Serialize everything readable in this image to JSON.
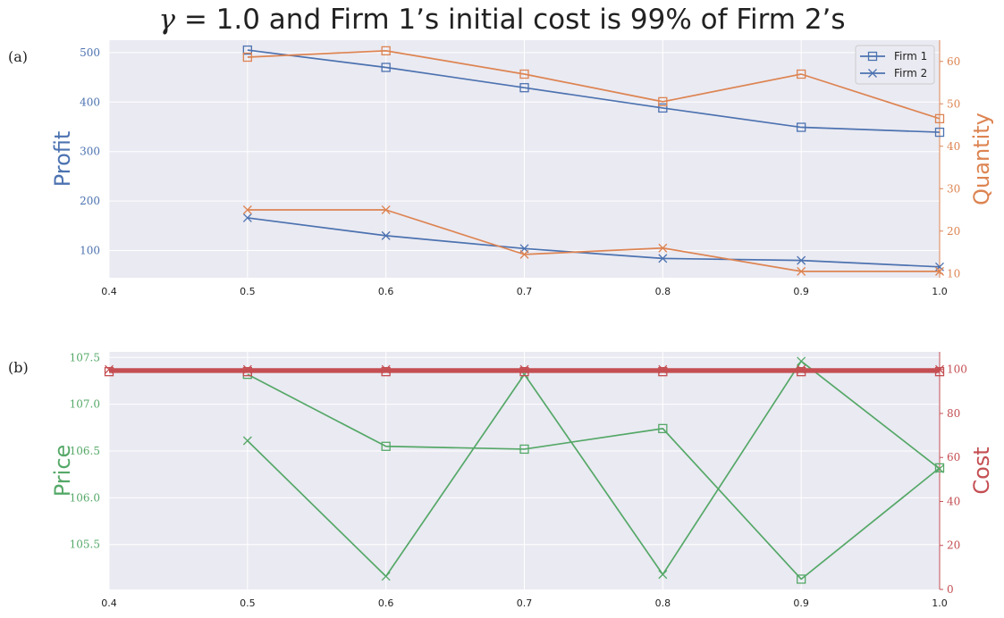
{
  "title_prefix": "γ",
  "title_rest": " = 1.0 and Firm 1’s initial cost is 99% of Firm 2’s",
  "panel_labels": {
    "a": "(a)",
    "b": "(b)"
  },
  "colors": {
    "blue": "#4c72b0",
    "orange": "#dd8452",
    "green": "#55a868",
    "red": "#c44e52",
    "background": "#eaeaf2",
    "grid": "#ffffff"
  },
  "chart_data": [
    {
      "id": "a",
      "type": "line",
      "x": [
        0.5,
        0.6,
        0.7,
        0.8,
        0.9,
        1.0
      ],
      "xlim": [
        0.4,
        1.0
      ],
      "xticks": [
        0.4,
        0.5,
        0.6,
        0.7,
        0.8,
        0.9,
        1.0
      ],
      "legend_placement": "top-right",
      "legend": [
        {
          "label": "Firm 1",
          "marker": "square"
        },
        {
          "label": "Firm 2",
          "marker": "x"
        }
      ],
      "left_axis": {
        "label": "Profit",
        "color": "#4c72b0",
        "ylim": [
          45,
          525
        ],
        "ticks": [
          100,
          200,
          300,
          400,
          500
        ]
      },
      "right_axis": {
        "label": "Quantity",
        "color": "#dd8452",
        "ylim": [
          9,
          65
        ],
        "ticks": [
          10,
          20,
          30,
          40,
          50,
          60
        ]
      },
      "series": [
        {
          "axis": "left",
          "color": "#4c72b0",
          "marker": "square",
          "values": [
            505,
            470,
            429,
            388,
            349,
            339
          ]
        },
        {
          "axis": "left",
          "color": "#4c72b0",
          "marker": "x",
          "values": [
            166,
            130,
            104,
            84,
            80,
            67
          ]
        },
        {
          "axis": "right",
          "color": "#dd8452",
          "marker": "square",
          "values": [
            61,
            62.5,
            57,
            50.5,
            57,
            46.5
          ]
        },
        {
          "axis": "right",
          "color": "#dd8452",
          "marker": "x",
          "values": [
            25,
            25,
            14.5,
            16,
            10.5,
            10.5
          ]
        }
      ]
    },
    {
      "id": "b",
      "type": "line",
      "x": [
        0.5,
        0.6,
        0.7,
        0.8,
        0.9,
        1.0
      ],
      "xlim": [
        0.4,
        1.0
      ],
      "xticks": [
        0.4,
        0.5,
        0.6,
        0.7,
        0.8,
        0.9,
        1.0
      ],
      "left_axis": {
        "label": "Price",
        "color": "#55a868",
        "ylim": [
          105.02,
          107.56
        ],
        "ticks": [
          105.5,
          106.0,
          106.5,
          107.0,
          107.5
        ]
      },
      "right_axis": {
        "label": "Cost",
        "color": "#c44e52",
        "ylim": [
          0,
          108
        ],
        "ticks": [
          0,
          20,
          40,
          60,
          80,
          100
        ]
      },
      "series": [
        {
          "axis": "left",
          "color": "#55a868",
          "marker": "square",
          "values": [
            107.32,
            106.55,
            106.52,
            106.74,
            105.13,
            106.32
          ]
        },
        {
          "axis": "left",
          "color": "#55a868",
          "marker": "x",
          "values": [
            106.61,
            105.16,
            107.32,
            105.18,
            107.46,
            106.31
          ]
        },
        {
          "axis": "right",
          "color": "#c44e52",
          "marker": "square",
          "x": [
            0.4,
            0.5,
            0.6,
            0.7,
            0.8,
            0.9,
            1.0
          ],
          "values": [
            99,
            99,
            99,
            99,
            99,
            99,
            99
          ],
          "thick": true
        },
        {
          "axis": "right",
          "color": "#c44e52",
          "marker": "x",
          "x": [
            0.4,
            0.5,
            0.6,
            0.7,
            0.8,
            0.9,
            1.0
          ],
          "values": [
            100,
            100,
            100,
            100,
            100,
            100,
            100
          ],
          "thick": true
        }
      ]
    }
  ]
}
